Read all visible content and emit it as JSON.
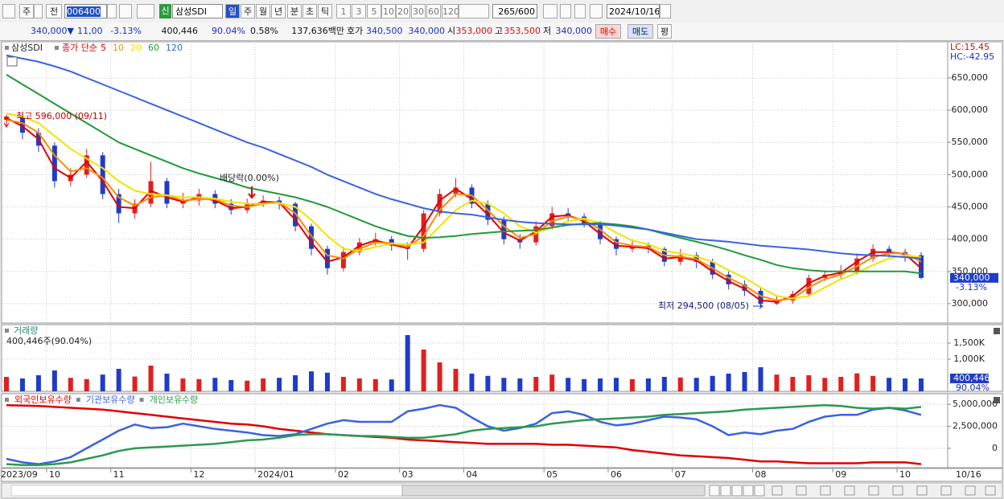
{
  "toolbar": {
    "chart_type_button": "주",
    "view_button": "전",
    "code": "006400",
    "market_badge": "신",
    "name": "삼성SDI",
    "periods": [
      "일",
      "주",
      "월",
      "년",
      "분",
      "초",
      "틱"
    ],
    "intervals": [
      "1",
      "3",
      "5",
      "10",
      "20",
      "30",
      "60",
      "120"
    ],
    "count": "265/600",
    "date": "2024/10/16"
  },
  "quote_bar": {
    "price": "340,000▼",
    "change": "11,000",
    "change_pct": "-3.13%",
    "volume": "400,446",
    "volume_ratio": "90.04%",
    "turnover_pct": "0.58%",
    "amount": "137,636백만",
    "bid_ask_label": "호가",
    "ask": "340,500",
    "bid": "340,000",
    "open_label": "시",
    "open": "353,000",
    "high_label": "고",
    "high": "353,500",
    "low_label": "저",
    "low": "340,000",
    "buy": "매수",
    "sell": "매도",
    "avg": "평"
  },
  "chart_data": [
    {
      "type": "candlestick",
      "name": "삼성SDI",
      "legend_prefix": "종가 단순",
      "up_color": "#e02020",
      "down_color": "#1e3cc8",
      "open": [
        585000,
        590000,
        565000,
        545000,
        490000,
        500000,
        530000,
        470000,
        440000,
        455000,
        490000,
        455000,
        460000,
        470000,
        455000,
        445000,
        455000,
        460000,
        455000,
        420000,
        385000,
        355000,
        380000,
        395000,
        400000,
        390000,
        385000,
        440000,
        470000,
        480000,
        455000,
        430000,
        400000,
        395000,
        420000,
        440000,
        435000,
        425000,
        400000,
        385000,
        390000,
        385000,
        365000,
        375000,
        365000,
        345000,
        330000,
        320000,
        300000,
        305000,
        315000,
        340000,
        345000,
        350000,
        370000,
        385000,
        380000,
        375000
      ],
      "high": [
        593000,
        596000,
        572000,
        550000,
        510000,
        540000,
        535000,
        478000,
        462000,
        520000,
        495000,
        472000,
        478000,
        476000,
        462000,
        463000,
        468000,
        466000,
        458000,
        424000,
        390000,
        388000,
        402000,
        410000,
        405000,
        395000,
        445000,
        478000,
        495000,
        485000,
        460000,
        435000,
        408000,
        428000,
        450000,
        448000,
        440000,
        428000,
        404000,
        398000,
        395000,
        388000,
        385000,
        380000,
        370000,
        350000,
        336000,
        324000,
        312000,
        320000,
        345000,
        352000,
        360000,
        378000,
        392000,
        390000,
        385000,
        380000
      ],
      "low": [
        575000,
        555000,
        535000,
        480000,
        482000,
        495000,
        462000,
        425000,
        432000,
        450000,
        448000,
        448000,
        452000,
        448000,
        438000,
        440000,
        450000,
        446000,
        412000,
        375000,
        345000,
        350000,
        375000,
        390000,
        382000,
        368000,
        380000,
        435000,
        465000,
        448000,
        422000,
        392000,
        385000,
        390000,
        415000,
        428000,
        418000,
        392000,
        375000,
        380000,
        378000,
        358000,
        360000,
        355000,
        338000,
        322000,
        312000,
        294500,
        298000,
        300000,
        312000,
        335000,
        338000,
        345000,
        365000,
        372000,
        365000,
        338000
      ],
      "close": [
        590000,
        565000,
        545000,
        490000,
        500000,
        530000,
        470000,
        440000,
        455000,
        490000,
        455000,
        460000,
        470000,
        455000,
        445000,
        455000,
        460000,
        455000,
        420000,
        385000,
        355000,
        380000,
        395000,
        400000,
        390000,
        385000,
        440000,
        470000,
        480000,
        455000,
        430000,
        400000,
        395000,
        420000,
        440000,
        435000,
        425000,
        400000,
        385000,
        390000,
        385000,
        365000,
        375000,
        365000,
        345000,
        330000,
        320000,
        300000,
        305000,
        315000,
        340000,
        345000,
        350000,
        370000,
        385000,
        380000,
        375000,
        340000
      ],
      "series": [
        {
          "name": "5",
          "color": "#e00000",
          "values": [
            588000,
            575000,
            555000,
            510000,
            495000,
            520000,
            490000,
            450000,
            448000,
            475000,
            465000,
            458000,
            465000,
            460000,
            448000,
            450000,
            458000,
            457000,
            430000,
            395000,
            365000,
            372000,
            390000,
            398000,
            392000,
            386000,
            420000,
            460000,
            478000,
            462000,
            438000,
            410000,
            398000,
            412000,
            435000,
            437000,
            428000,
            408000,
            390000,
            388000,
            386000,
            370000,
            372000,
            367000,
            350000,
            335000,
            323000,
            305000,
            303000,
            312000,
            332000,
            343000,
            348000,
            365000,
            380000,
            380000,
            377000,
            355000
          ]
        },
        {
          "name": "10",
          "color": "#ff8a00",
          "values": [
            585000,
            580000,
            565000,
            530000,
            505000,
            510000,
            495000,
            465000,
            452000,
            465000,
            468000,
            460000,
            462000,
            462000,
            452000,
            450000,
            455000,
            457000,
            440000,
            405000,
            375000,
            370000,
            385000,
            395000,
            394000,
            388000,
            405000,
            445000,
            470000,
            468000,
            445000,
            420000,
            402000,
            408000,
            428000,
            435000,
            430000,
            415000,
            395000,
            390000,
            388000,
            375000,
            373000,
            369000,
            355000,
            340000,
            328000,
            312000,
            305000,
            308000,
            325000,
            338000,
            345000,
            358000,
            372000,
            378000,
            378000,
            365000
          ]
        },
        {
          "name": "20",
          "color": "#f2e200",
          "values": [
            595000,
            590000,
            580000,
            560000,
            540000,
            525000,
            510000,
            490000,
            475000,
            470000,
            468000,
            465000,
            465000,
            463000,
            458000,
            455000,
            455000,
            456000,
            450000,
            430000,
            405000,
            385000,
            382000,
            388000,
            393000,
            392000,
            395000,
            420000,
            445000,
            460000,
            455000,
            440000,
            420000,
            410000,
            418000,
            428000,
            432000,
            425000,
            410000,
            398000,
            392000,
            382000,
            378000,
            373000,
            365000,
            352000,
            340000,
            325000,
            312000,
            308000,
            312000,
            325000,
            338000,
            348000,
            360000,
            370000,
            375000,
            372000
          ]
        },
        {
          "name": "60",
          "color": "#1f9a3a",
          "values": [
            655000,
            640000,
            625000,
            610000,
            595000,
            580000,
            565000,
            550000,
            540000,
            530000,
            520000,
            510000,
            502000,
            495000,
            488000,
            480000,
            475000,
            470000,
            465000,
            458000,
            450000,
            440000,
            430000,
            420000,
            412000,
            405000,
            402000,
            403000,
            405000,
            408000,
            410000,
            412000,
            413000,
            414000,
            418000,
            422000,
            424000,
            425000,
            423000,
            420000,
            415000,
            408000,
            402000,
            396000,
            390000,
            383000,
            375000,
            368000,
            360000,
            355000,
            352000,
            350000,
            350000,
            350000,
            350000,
            350000,
            350000,
            347000
          ]
        },
        {
          "name": "120",
          "color": "#3a62e0",
          "values": [
            685000,
            680000,
            675000,
            668000,
            660000,
            650000,
            640000,
            630000,
            620000,
            610000,
            600000,
            590000,
            580000,
            570000,
            560000,
            550000,
            542000,
            532000,
            522000,
            512000,
            500000,
            490000,
            480000,
            470000,
            462000,
            455000,
            448000,
            443000,
            440000,
            438000,
            434000,
            430000,
            427000,
            425000,
            424000,
            423000,
            423000,
            423000,
            421000,
            418000,
            415000,
            410000,
            405000,
            400000,
            398000,
            396000,
            393000,
            390000,
            388000,
            386000,
            384000,
            381000,
            378000,
            376000,
            375000,
            374000,
            372000,
            370000
          ]
        }
      ],
      "ylim": [
        270000,
        706000
      ],
      "yticks": [
        {
          "value": 650000,
          "label": "650,000"
        },
        {
          "value": 600000,
          "label": "600,000"
        },
        {
          "value": 550000,
          "label": "550,000"
        },
        {
          "value": 500000,
          "label": "500,000"
        },
        {
          "value": 450000,
          "label": "450,000"
        },
        {
          "value": 400000,
          "label": "400,000"
        },
        {
          "value": 350000,
          "label": "350,000"
        },
        {
          "value": 300000,
          "label": "300,000"
        }
      ],
      "grid": true,
      "annotations": [
        "최고 596,000 (09/11)",
        "배당락(0.00%)",
        "최저 294,500 (08/05)"
      ],
      "lc_label": "LC:15.45",
      "hc_label": "HC:-42.95",
      "last_price_label": "340,000",
      "last_change_label": "-3.13%"
    },
    {
      "type": "bar",
      "title": "거래량",
      "info_label": "400,446주(90.04%)",
      "values": [
        450000,
        400000,
        500000,
        650000,
        420000,
        380000,
        520000,
        700000,
        460000,
        800000,
        550000,
        400000,
        380000,
        420000,
        350000,
        330000,
        400000,
        420000,
        500000,
        620000,
        580000,
        450000,
        400000,
        380000,
        370000,
        1750000,
        1300000,
        900000,
        700000,
        550000,
        480000,
        420000,
        400000,
        450000,
        520000,
        420000,
        380000,
        400000,
        420000,
        380000,
        400000,
        450000,
        430000,
        420000,
        480000,
        550000,
        600000,
        750000,
        520000,
        450000,
        500000,
        420000,
        450000,
        560000,
        480000,
        420000,
        400000,
        400446
      ],
      "ylim": [
        0,
        2075000
      ],
      "yticks": [
        {
          "value": 1500000,
          "label": "1,500K"
        },
        {
          "value": 1000000,
          "label": "1,000K"
        }
      ],
      "grid": true,
      "last_value_label": "400,446",
      "last_ratio_label": "90.04%"
    },
    {
      "type": "line",
      "categories": [
        "2023/09",
        null,
        null,
        "10",
        null,
        null,
        null,
        "11",
        null,
        null,
        null,
        null,
        "12",
        null,
        null,
        null,
        "2024/01",
        null,
        null,
        null,
        null,
        "02",
        null,
        null,
        null,
        "03",
        null,
        null,
        null,
        "04",
        null,
        null,
        null,
        null,
        "05",
        null,
        null,
        null,
        "06",
        null,
        null,
        null,
        "07",
        null,
        null,
        null,
        null,
        "08",
        null,
        null,
        null,
        null,
        "09",
        null,
        null,
        null,
        "10",
        null
      ],
      "series": [
        {
          "name": "외국인보유수량",
          "color": "#e00000",
          "values": [
            4900000,
            4850000,
            4800000,
            4700000,
            4600000,
            4500000,
            4400000,
            4200000,
            4000000,
            3800000,
            3600000,
            3400000,
            3200000,
            3000000,
            2800000,
            2700000,
            2500000,
            2200000,
            2000000,
            1800000,
            1600000,
            1500000,
            1400000,
            1300000,
            1200000,
            1000000,
            900000,
            800000,
            700000,
            600000,
            500000,
            500000,
            500000,
            500000,
            400000,
            400000,
            300000,
            200000,
            100000,
            -200000,
            -400000,
            -600000,
            -800000,
            -900000,
            -1000000,
            -1100000,
            -1300000,
            -1500000,
            -1500000,
            -1600000,
            -1700000,
            -1700000,
            -1700000,
            -1700000,
            -1600000,
            -1600000,
            -1600000,
            -1800000
          ]
        },
        {
          "name": "기관보유수량",
          "color": "#3a62e0",
          "values": [
            -1200000,
            -1600000,
            -1800000,
            -1500000,
            -1000000,
            0,
            1000000,
            2000000,
            2700000,
            2300000,
            2400000,
            2800000,
            2500000,
            2200000,
            2000000,
            1800000,
            1500000,
            1400000,
            1600000,
            2200000,
            2800000,
            3200000,
            3000000,
            3000000,
            3000000,
            4200000,
            4500000,
            4900000,
            4600000,
            3500000,
            2500000,
            2000000,
            2300000,
            2800000,
            4000000,
            4200000,
            3800000,
            3000000,
            2600000,
            2800000,
            3200000,
            3600000,
            3500000,
            3300000,
            2500000,
            1500000,
            1800000,
            1600000,
            2000000,
            2200000,
            3000000,
            3600000,
            3800000,
            3800000,
            4400000,
            4600000,
            4300000,
            3800000
          ]
        },
        {
          "name": "개인보유수량",
          "color": "#2a9a50",
          "values": [
            -1800000,
            -1900000,
            -1900000,
            -1800000,
            -1600000,
            -1200000,
            -800000,
            -300000,
            0,
            100000,
            200000,
            300000,
            400000,
            500000,
            700000,
            900000,
            1000000,
            1200000,
            1500000,
            1600000,
            1600000,
            1500000,
            1400000,
            1400000,
            1300000,
            1200000,
            1200000,
            1400000,
            1600000,
            2000000,
            2200000,
            2300000,
            2400000,
            2500000,
            2800000,
            3000000,
            3200000,
            3300000,
            3400000,
            3500000,
            3600000,
            3800000,
            3900000,
            4000000,
            4100000,
            4200000,
            4400000,
            4500000,
            4600000,
            4700000,
            4800000,
            4900000,
            4800000,
            4600000,
            4500000,
            4600000,
            4500000,
            4700000
          ]
        }
      ],
      "ylim": [
        -2200000,
        6200000
      ],
      "yticks": [
        {
          "value": 5000000,
          "label": "5,000,000"
        },
        {
          "value": 2500000,
          "label": "2,500,000"
        },
        0
      ],
      "grid": true,
      "x_end_label": "10/16"
    }
  ]
}
